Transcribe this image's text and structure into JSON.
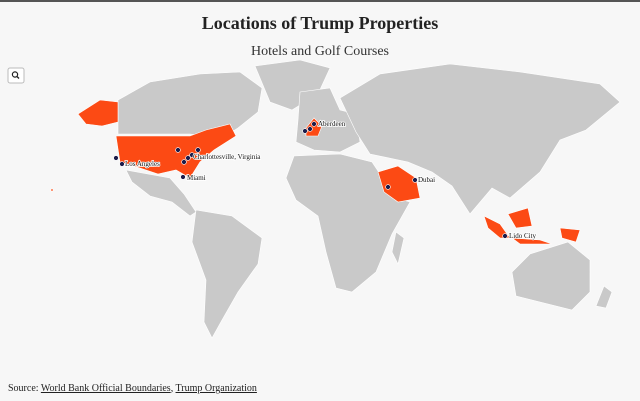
{
  "header": {
    "title": "Locations of Trump Properties",
    "subtitle": "Hotels and Golf Courses"
  },
  "labels": [
    "Aberdeen",
    "Charlottesville, Virginia",
    "Los Angeles",
    "Miami",
    "Dubai",
    "Lido City"
  ],
  "source": {
    "label": "Source:",
    "links": [
      "World Bank Official Boundaries",
      "Trump Organization"
    ],
    "separator": ","
  }
}
